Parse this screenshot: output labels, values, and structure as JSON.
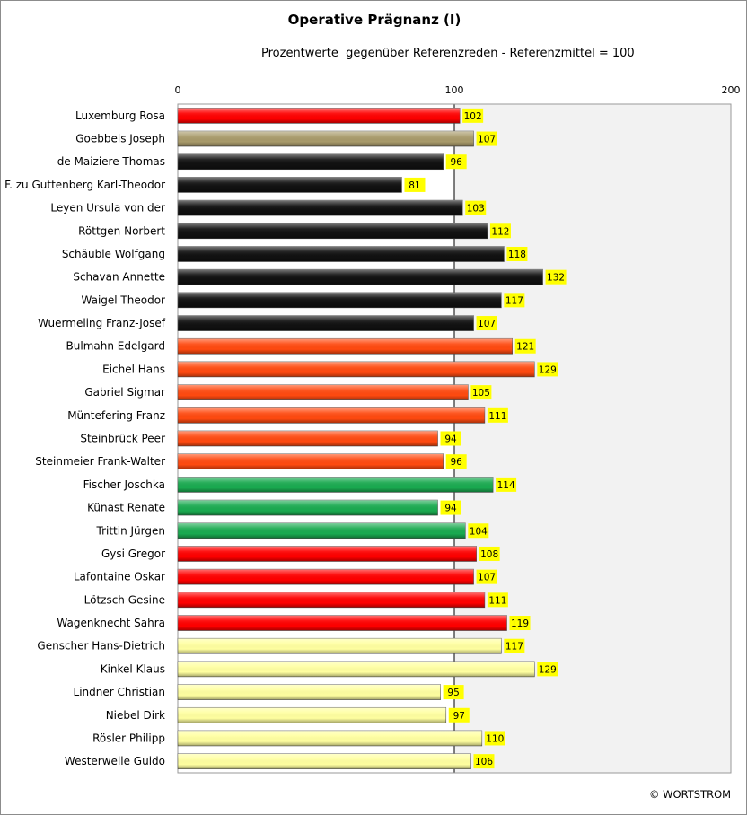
{
  "chart_data": {
    "type": "bar",
    "orientation": "horizontal",
    "title": "Operative Prägnanz (I)",
    "subtitle": "Prozentwerte  gegenüber Referenzreden - Referenzmittel = 100",
    "credit": "© WORTSTROM",
    "xlim": [
      0,
      200
    ],
    "xticks": [
      0,
      100,
      200
    ],
    "grid": true,
    "categories": [
      "Luxemburg Rosa",
      "Goebbels Joseph",
      "de Maiziere Thomas",
      "F. zu Guttenberg Karl-Theodor",
      "Leyen Ursula von der",
      "Röttgen Norbert",
      "Schäuble Wolfgang",
      "Schavan Annette",
      "Waigel Theodor",
      "Wuermeling Franz-Josef",
      "Bulmahn Edelgard",
      "Eichel Hans",
      "Gabriel Sigmar",
      "Müntefering Franz",
      "Steinbrück Peer",
      "Steinmeier Frank-Walter",
      "Fischer Joschka",
      "Künast Renate",
      "Trittin Jürgen",
      "Gysi Gregor",
      "Lafontaine Oskar",
      "Lötzsch Gesine",
      "Wagenknecht Sahra",
      "Genscher Hans-Dietrich",
      "Kinkel Klaus",
      "Lindner Christian",
      "Niebel Dirk",
      "Rösler Philipp",
      "Westerwelle Guido"
    ],
    "values": [
      102,
      107,
      96,
      81,
      103,
      112,
      118,
      132,
      117,
      107,
      121,
      129,
      105,
      111,
      94,
      96,
      114,
      94,
      104,
      108,
      107,
      111,
      119,
      117,
      129,
      95,
      97,
      110,
      106
    ],
    "colors": [
      "#ff0000",
      "#a89a6a",
      "#111111",
      "#111111",
      "#111111",
      "#111111",
      "#111111",
      "#111111",
      "#111111",
      "#111111",
      "#ff4a10",
      "#ff4a10",
      "#ff4a10",
      "#ff4a10",
      "#ff4a10",
      "#ff4a10",
      "#1aaa50",
      "#1aaa50",
      "#1aaa50",
      "#ff0000",
      "#ff0000",
      "#ff0000",
      "#ff0000",
      "#ffffa0",
      "#ffffa0",
      "#ffffa0",
      "#ffffa0",
      "#ffffa0",
      "#ffffa0"
    ],
    "label_background": "#ffff00",
    "plot_background": "#f2f2f2"
  }
}
